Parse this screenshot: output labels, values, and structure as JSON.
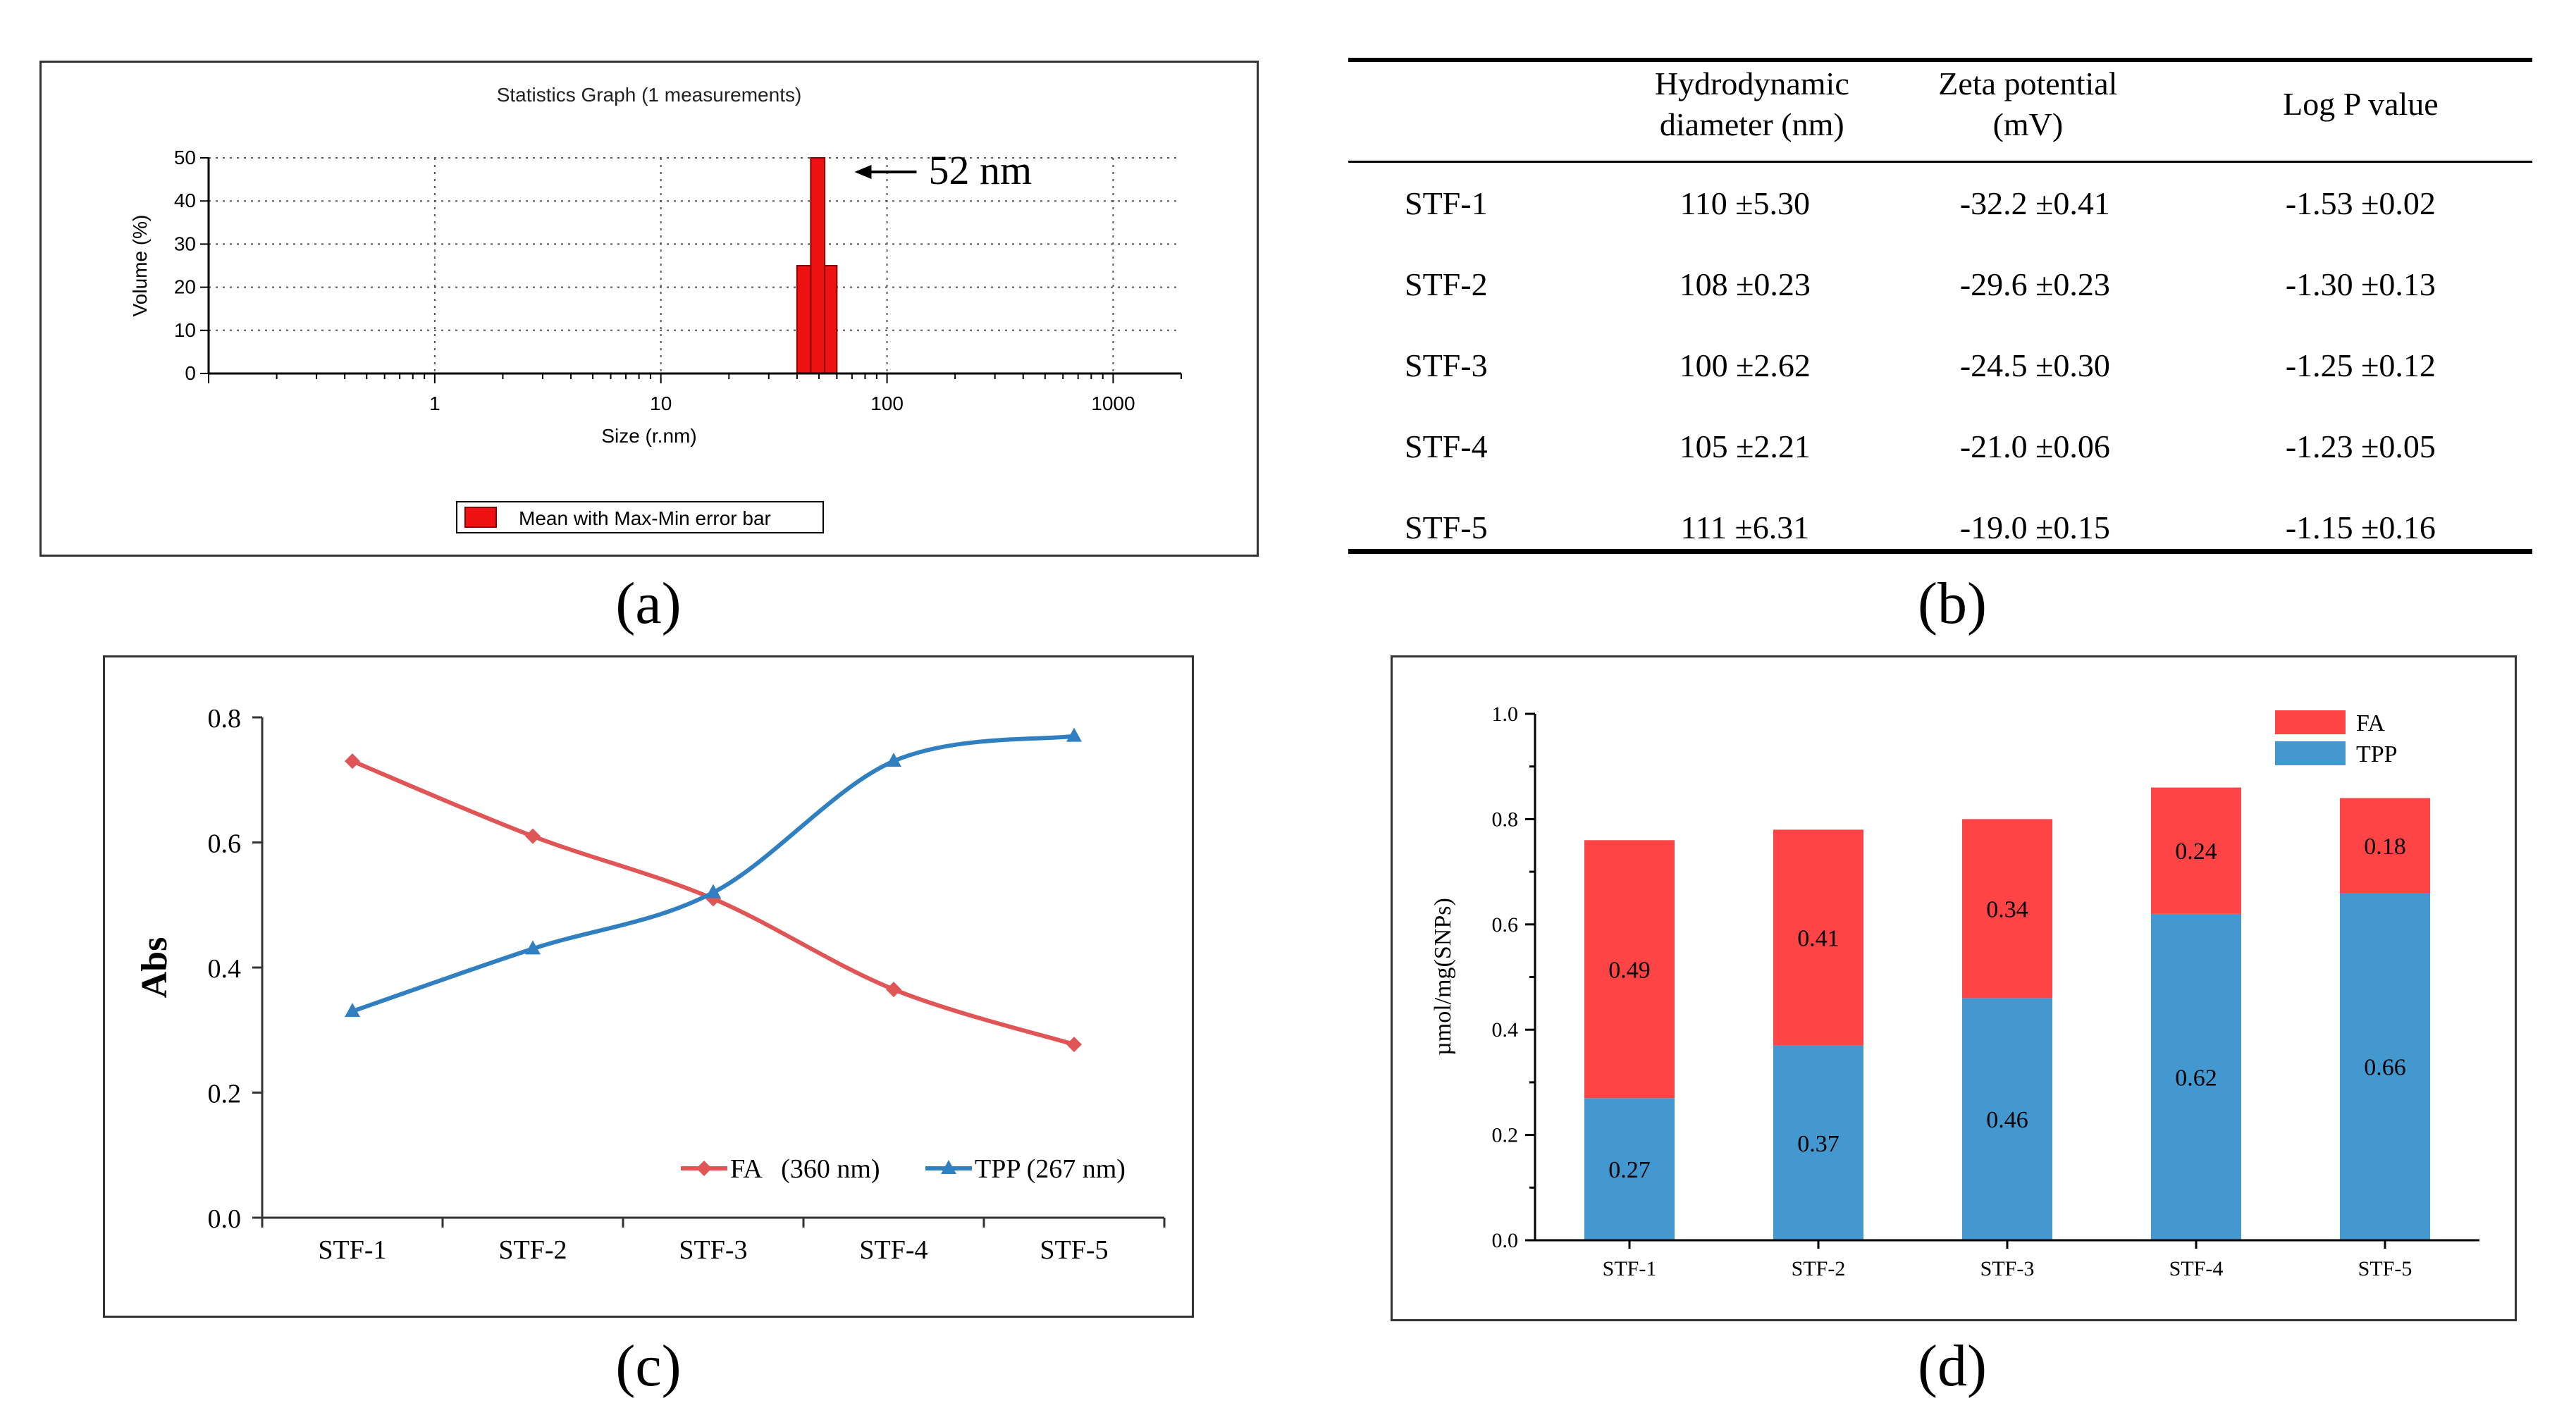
{
  "panels": {
    "a": {
      "caption": "(a)"
    },
    "b": {
      "caption": "(b)"
    },
    "c": {
      "caption": "(c)"
    },
    "d": {
      "caption": "(d)"
    }
  },
  "chart_data": [
    {
      "id": "a",
      "type": "bar",
      "title": "Statistics Graph (1 measurements)",
      "xlabel": "Size (r.nm)",
      "ylabel": "Volume (%)",
      "x_scale": "log",
      "xlim": [
        0.1,
        2000
      ],
      "ylim": [
        0,
        50
      ],
      "x_ticks": [
        "1",
        "10",
        "100",
        "1000"
      ],
      "y_ticks": [
        "0",
        "10",
        "20",
        "30",
        "40",
        "50"
      ],
      "grid": true,
      "bars": [
        {
          "x_from": 40,
          "x_to": 46,
          "value": 25
        },
        {
          "x_from": 46,
          "x_to": 53,
          "value": 50
        },
        {
          "x_from": 53,
          "x_to": 60,
          "value": 25
        }
      ],
      "annotation": "52 nm",
      "legend": [
        "Mean with Max-Min error bar"
      ],
      "legend_position": "bottom",
      "series_color": "#ee1111"
    },
    {
      "id": "b",
      "type": "table",
      "columns": [
        "",
        "Hydrodynamic diameter (nm)",
        "Zeta potential (mV)",
        "Log P value"
      ],
      "rows": [
        [
          "STF-1",
          "110 ±5.30",
          "-32.2 ±0.41",
          "-1.53 ±0.02"
        ],
        [
          "STF-2",
          "108 ±0.23",
          "-29.6 ±0.23",
          "-1.30 ±0.13"
        ],
        [
          "STF-3",
          "100 ±2.62",
          "-24.5 ±0.30",
          "-1.25 ±0.12"
        ],
        [
          "STF-4",
          "105 ±2.21",
          "-21.0 ±0.06",
          "-1.23 ±0.05"
        ],
        [
          "STF-5",
          "111 ±6.31",
          "-19.0 ±0.15",
          "-1.15 ±0.16"
        ]
      ]
    },
    {
      "id": "c",
      "type": "line",
      "ylabel": "Abs",
      "categories": [
        "STF-1",
        "STF-2",
        "STF-3",
        "STF-4",
        "STF-5"
      ],
      "ylim": [
        0,
        0.8
      ],
      "y_ticks": [
        "0.0",
        "0.2",
        "0.4",
        "0.6",
        "0.8"
      ],
      "series": [
        {
          "name": "FA   (360 nm)",
          "values": [
            0.73,
            0.61,
            0.51,
            0.365,
            0.277
          ],
          "color": "#e05555"
        },
        {
          "name": "TPP (267 nm)",
          "values": [
            0.33,
            0.43,
            0.52,
            0.73,
            0.77
          ],
          "color": "#2f7fc1"
        }
      ],
      "legend_position": "bottom-right",
      "grid": false
    },
    {
      "id": "d",
      "type": "bar",
      "stacked": true,
      "ylabel": "µmol/mg(SNPs)",
      "categories": [
        "STF-1",
        "STF-2",
        "STF-3",
        "STF-4",
        "STF-5"
      ],
      "ylim": [
        0,
        1.0
      ],
      "y_ticks": [
        "0.0",
        "0.2",
        "0.4",
        "0.6",
        "0.8",
        "1.0"
      ],
      "series": [
        {
          "name": "TPP",
          "values": [
            0.27,
            0.37,
            0.46,
            0.62,
            0.66
          ],
          "color": "#4398cf"
        },
        {
          "name": "FA",
          "values": [
            0.49,
            0.41,
            0.34,
            0.24,
            0.18
          ],
          "color": "#fe4444"
        }
      ],
      "legend_order": [
        "FA",
        "TPP"
      ],
      "legend_position": "top-right",
      "data_labels": [
        {
          "series": "TPP",
          "labels": [
            "0.27",
            "0.37",
            "0.46",
            "0.62",
            "0.66"
          ]
        },
        {
          "series": "FA",
          "labels": [
            "0.49",
            "0.41",
            "0.34",
            "0.24",
            "0.18"
          ]
        }
      ],
      "grid": false
    }
  ]
}
